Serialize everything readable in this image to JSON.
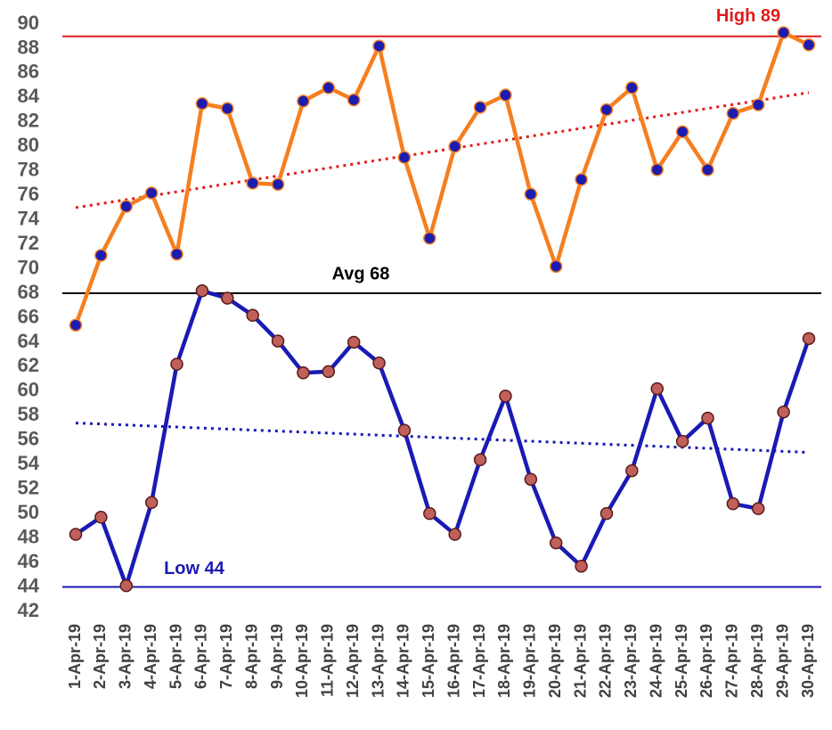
{
  "chart_data": {
    "type": "line",
    "categories": [
      "1-Apr-19",
      "2-Apr-19",
      "3-Apr-19",
      "4-Apr-19",
      "5-Apr-19",
      "6-Apr-19",
      "7-Apr-19",
      "8-Apr-19",
      "9-Apr-19",
      "10-Apr-19",
      "11-Apr-19",
      "12-Apr-19",
      "13-Apr-19",
      "14-Apr-19",
      "15-Apr-19",
      "16-Apr-19",
      "17-Apr-19",
      "18-Apr-19",
      "19-Apr-19",
      "20-Apr-19",
      "21-Apr-19",
      "22-Apr-19",
      "23-Apr-19",
      "24-Apr-19",
      "25-Apr-19",
      "26-Apr-19",
      "27-Apr-19",
      "28-Apr-19",
      "29-Apr-19",
      "30-Apr-19"
    ],
    "series": [
      {
        "color": "#f57f20",
        "marker_color": "#1c1cb0",
        "trend": [
          75,
          84.4
        ],
        "values": [
          65.4,
          71.1,
          75.1,
          76.2,
          71.2,
          83.5,
          83.1,
          77,
          76.9,
          83.7,
          84.8,
          83.8,
          88.2,
          79.1,
          72.5,
          80,
          83.2,
          84.2,
          76.1,
          70.2,
          77.3,
          83,
          84.8,
          78.1,
          81.2,
          78.1,
          82.7,
          83.4,
          89.3,
          88.3
        ]
      },
      {
        "color": "#1a1ab4",
        "marker_color": "#c0605a",
        "trend": [
          57.4,
          55
        ],
        "values": [
          48.3,
          49.7,
          44.1,
          50.9,
          62.2,
          68.2,
          67.6,
          66.2,
          64.1,
          61.5,
          61.6,
          64,
          62.3,
          56.8,
          50,
          48.3,
          54.4,
          59.6,
          52.8,
          47.6,
          45.7,
          50,
          53.5,
          60.2,
          55.9,
          57.8,
          50.8,
          50.4,
          58.3,
          64.3
        ]
      }
    ],
    "reference_lines": [
      {
        "value": 89,
        "label": "High 89",
        "color": "#e31b1b"
      },
      {
        "value": 68,
        "label": "Avg 68",
        "color": "#000000"
      },
      {
        "value": 44,
        "label": "Low 44",
        "color": "#1a1ab4"
      }
    ],
    "ylim": [
      42,
      90
    ],
    "yticks": [
      42,
      44,
      46,
      48,
      50,
      52,
      54,
      56,
      58,
      60,
      62,
      64,
      66,
      68,
      70,
      72,
      74,
      76,
      78,
      80,
      82,
      84,
      86,
      88,
      90
    ]
  }
}
